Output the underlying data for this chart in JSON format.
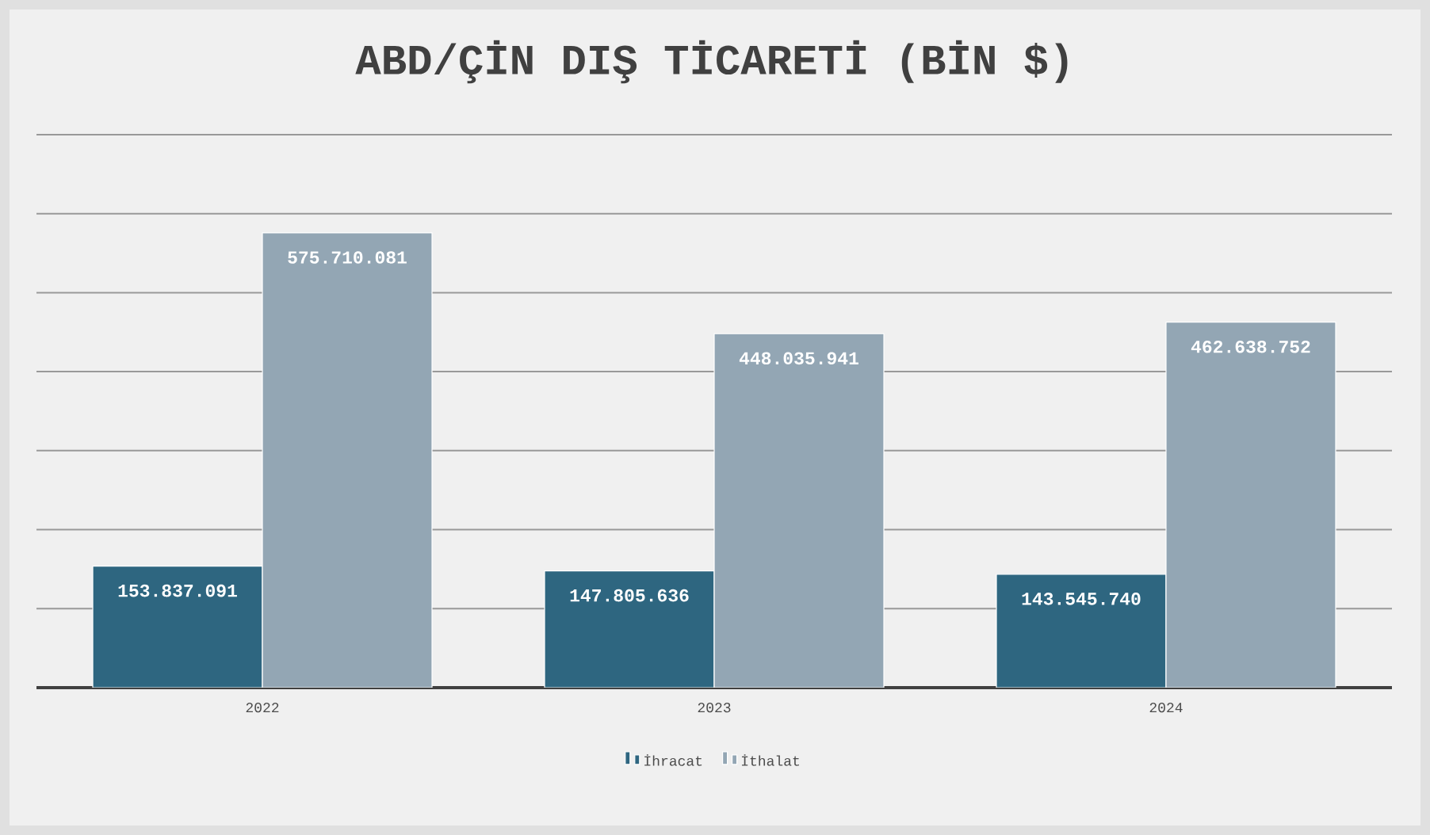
{
  "chart_data": {
    "type": "bar",
    "title": "ABD/ÇİN DIŞ TİCARETİ (BİN $)",
    "categories": [
      "2022",
      "2023",
      "2024"
    ],
    "series": [
      {
        "name": "İhracat",
        "color": "#2e6680",
        "values": [
          153837091,
          147805636,
          143545740
        ],
        "value_labels": [
          "153.837.091",
          "147.805.636",
          "143.545.740"
        ]
      },
      {
        "name": "İthalat",
        "color": "#93a6b4",
        "values": [
          575710081,
          448035941,
          462638752
        ],
        "value_labels": [
          "575.710.081",
          "448.035.941",
          "462.638.752"
        ]
      }
    ],
    "ylim": [
      0,
      700000000
    ],
    "yticks": [
      {
        "value": 0,
        "label": null
      },
      {
        "value": 100000000,
        "label": null
      },
      {
        "value": 200000000,
        "label": null
      },
      {
        "value": 300000000,
        "label": null
      },
      {
        "value": 400000000,
        "label": null
      },
      {
        "value": 500000000,
        "label": null
      },
      {
        "value": 600000000,
        "label": null
      },
      {
        "value": 700000000,
        "label": null
      }
    ],
    "grid": "y",
    "legend": "bottom",
    "tick_labels": "x"
  }
}
